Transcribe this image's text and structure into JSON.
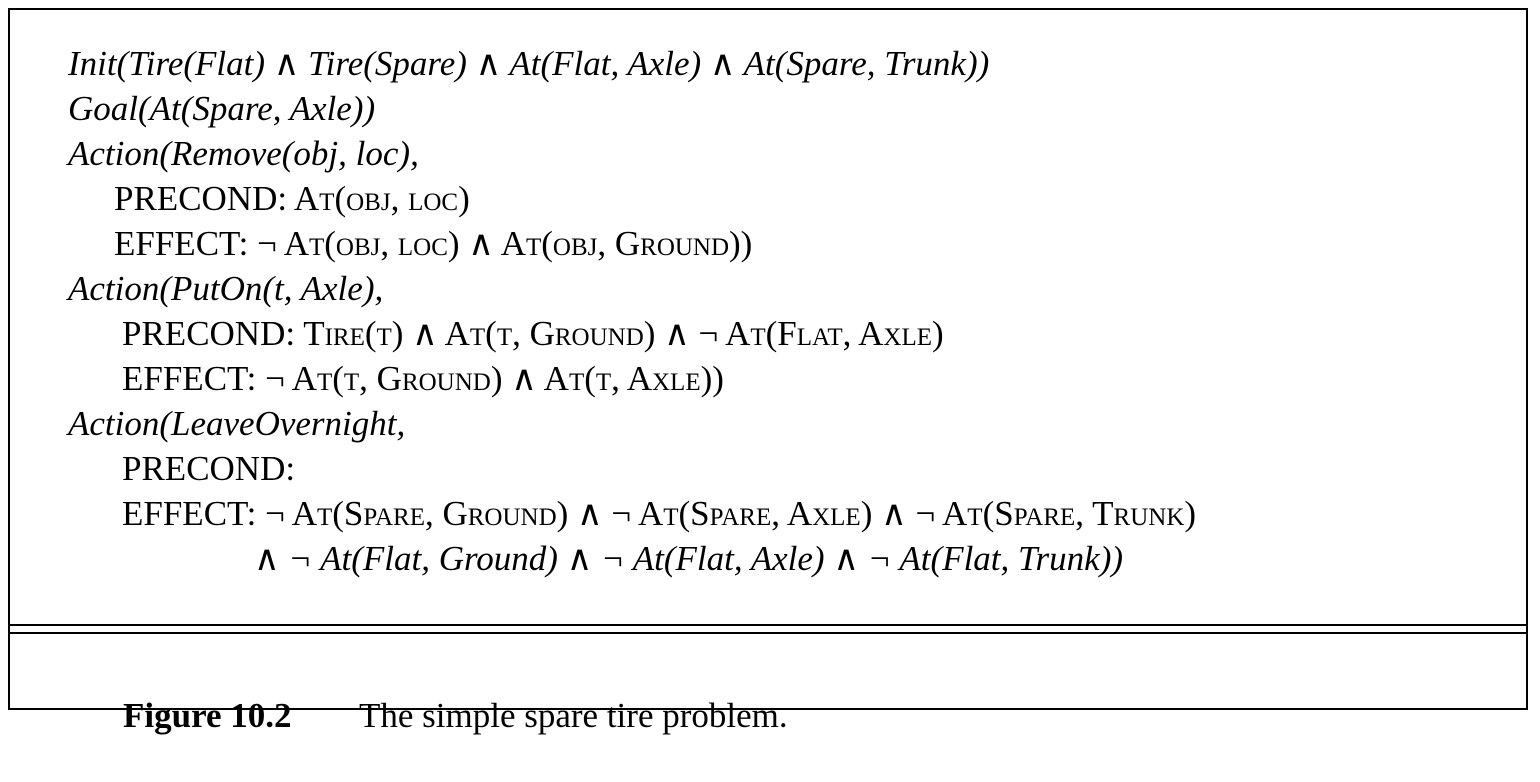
{
  "lines": [
    "Init(Tire(Flat) ∧ Tire(Spare) ∧ At(Flat, Axle) ∧ At(Spare, Trunk))",
    "Goal(At(Spare, Axle))",
    "Action(Remove(obj, loc),",
    "PRECOND: At(obj, loc)",
    "EFFECT: ¬ At(obj, loc) ∧ At(obj, Ground))",
    "Action(PutOn(t, Axle),",
    "PRECOND: Tire(t) ∧ At(t, Ground) ∧ ¬ At(Flat, Axle)",
    "EFFECT: ¬ At(t, Ground) ∧ At(t, Axle))",
    "Action(LeaveOvernight,",
    "PRECOND:",
    "EFFECT: ¬ At(Spare, Ground) ∧ ¬ At(Spare, Axle) ∧ ¬ At(Spare, Trunk)",
    "∧ ¬ At(Flat, Ground) ∧ ¬ At(Flat, Axle) ∧ ¬ At(Flat, Trunk))"
  ],
  "caption": {
    "label": "Figure 10.2",
    "text": "The simple spare tire problem."
  }
}
